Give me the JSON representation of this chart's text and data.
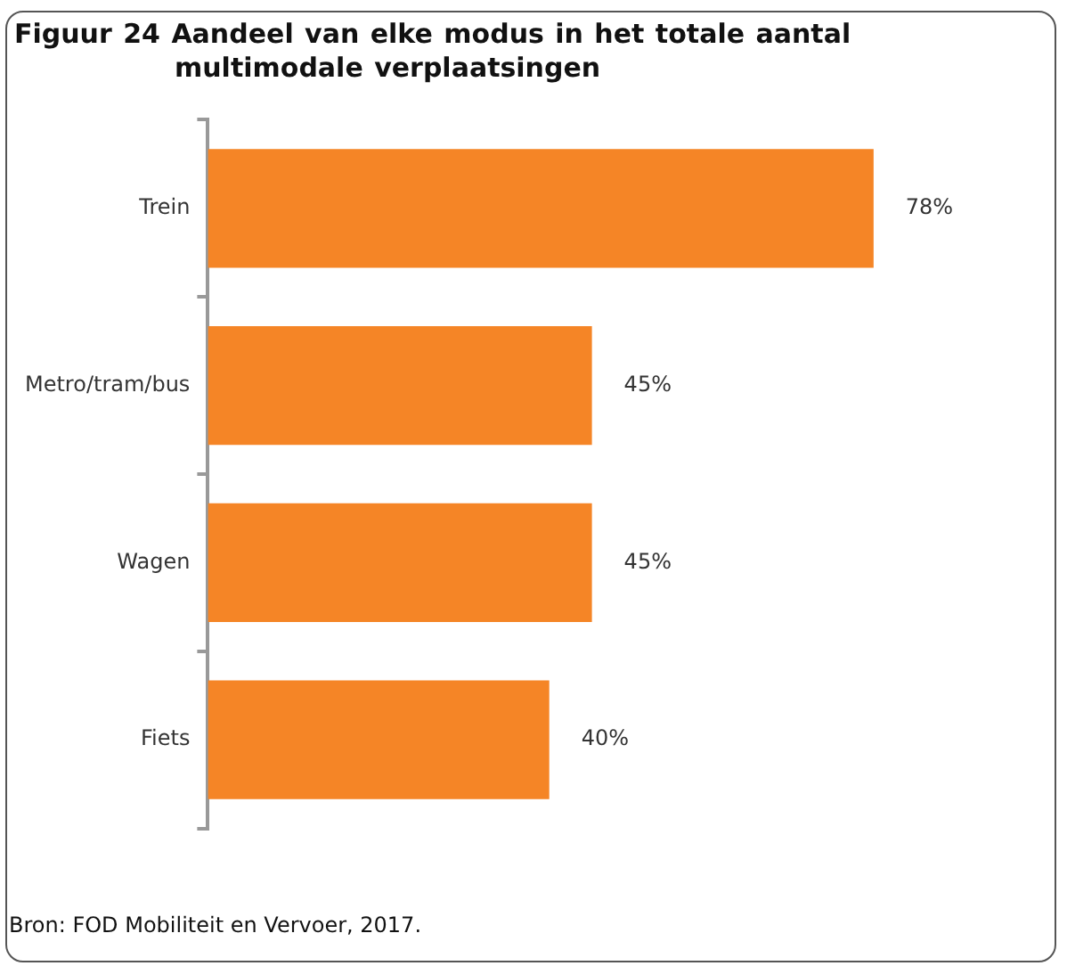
{
  "chart_data": {
    "type": "bar",
    "orientation": "horizontal",
    "title": "Figuur 24 Aandeel van elke modus in het totale aantal multimodale verplaatsingen",
    "categories": [
      "Trein",
      "Metro/tram/bus",
      "Wagen",
      "Fiets"
    ],
    "values": [
      78,
      45,
      45,
      40
    ],
    "value_labels": [
      "78%",
      "45%",
      "45%",
      "40%"
    ],
    "color": "#f58526",
    "tick_labels": "y",
    "grid": false,
    "legend": false,
    "annotations": [
      "Bron: FOD Mobiliteit en Vervoer, 2017."
    ]
  }
}
